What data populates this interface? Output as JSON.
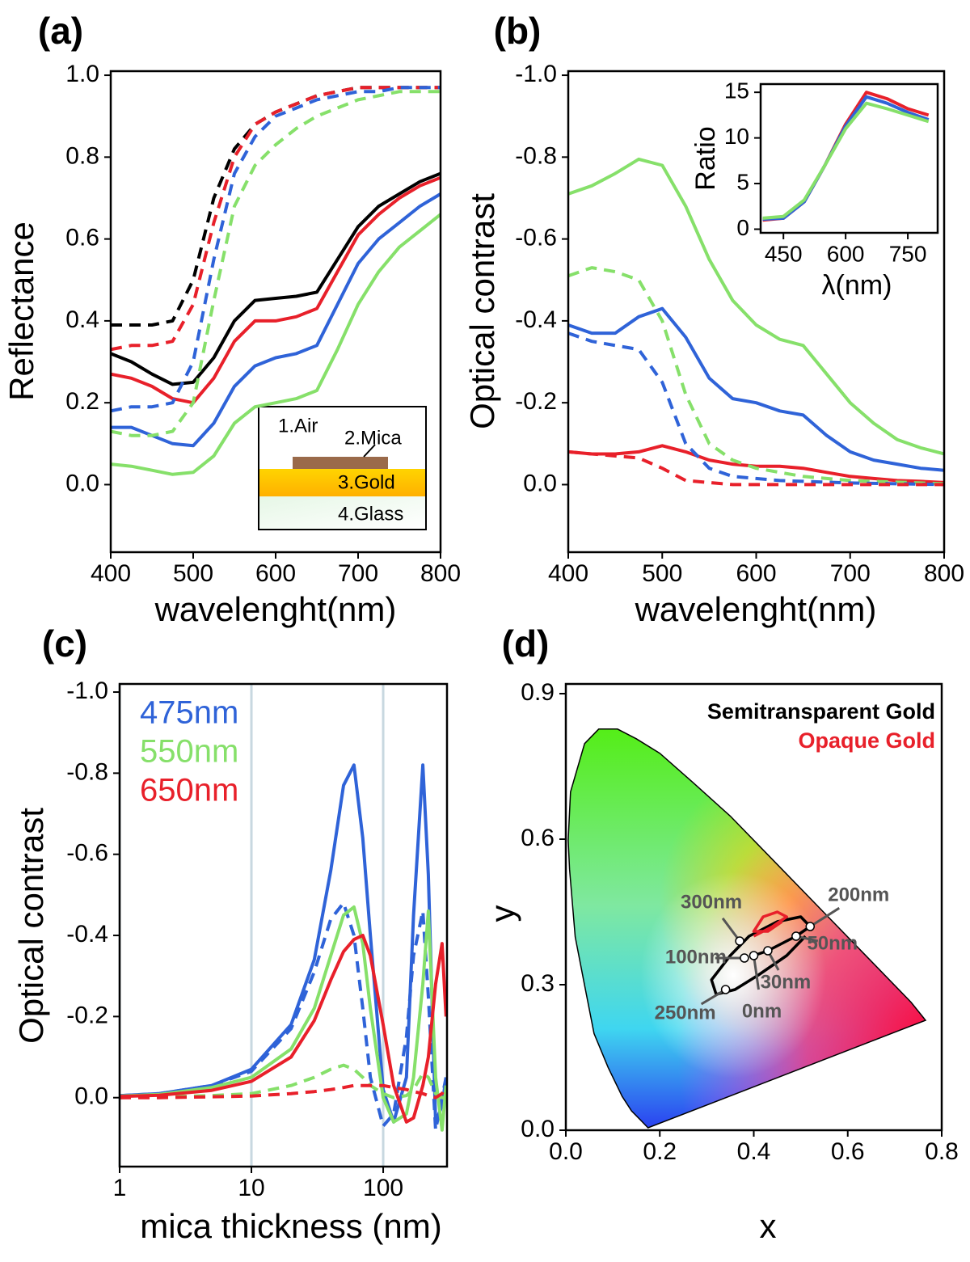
{
  "chart_data": [
    {
      "type": "line",
      "panel": "(a)",
      "xlabel": "wavelenght(nm)",
      "ylabel": "Reflectance",
      "x": [
        400,
        425,
        450,
        475,
        500,
        525,
        550,
        575,
        600,
        625,
        650,
        675,
        700,
        725,
        750,
        775,
        800
      ],
      "xlim": [
        400,
        800
      ],
      "xticks": [
        400,
        500,
        600,
        700,
        800
      ],
      "ylim": [
        -0.165,
        1.01
      ],
      "yticks": [
        {
          "value": 0,
          "label": "0.0"
        },
        0.2,
        0.4,
        0.6,
        0.8,
        {
          "value": 1,
          "label": "1.0"
        }
      ],
      "annotations": [
        "1.Air",
        "2.Mica",
        "3.Gold",
        "4.Glass"
      ],
      "series": [
        {
          "color": "#000000",
          "dash": false,
          "values": [
            0.32,
            0.3,
            0.27,
            0.245,
            0.25,
            0.31,
            0.4,
            0.45,
            0.455,
            0.46,
            0.47,
            0.55,
            0.63,
            0.68,
            0.71,
            0.74,
            0.76
          ]
        },
        {
          "color": "#e8202a",
          "dash": false,
          "values": [
            0.27,
            0.26,
            0.24,
            0.21,
            0.2,
            0.26,
            0.35,
            0.4,
            0.4,
            0.41,
            0.43,
            0.52,
            0.61,
            0.66,
            0.7,
            0.73,
            0.75
          ]
        },
        {
          "color": "#2f63d8",
          "dash": false,
          "values": [
            0.14,
            0.14,
            0.12,
            0.1,
            0.095,
            0.15,
            0.24,
            0.29,
            0.31,
            0.32,
            0.34,
            0.44,
            0.54,
            0.6,
            0.64,
            0.68,
            0.71
          ]
        },
        {
          "color": "#86e06a",
          "dash": false,
          "values": [
            0.05,
            0.045,
            0.035,
            0.025,
            0.03,
            0.07,
            0.15,
            0.19,
            0.2,
            0.21,
            0.23,
            0.33,
            0.44,
            0.52,
            0.58,
            0.62,
            0.66
          ]
        },
        {
          "color": "#000000",
          "dash": true,
          "values": [
            0.39,
            0.39,
            0.39,
            0.4,
            0.5,
            0.7,
            0.82,
            0.88,
            0.91,
            0.93,
            0.95,
            0.96,
            0.97,
            0.97,
            0.97,
            0.97,
            0.97
          ]
        },
        {
          "color": "#e8202a",
          "dash": true,
          "values": [
            0.33,
            0.34,
            0.34,
            0.35,
            0.44,
            0.64,
            0.8,
            0.88,
            0.91,
            0.93,
            0.95,
            0.96,
            0.97,
            0.97,
            0.97,
            0.97,
            0.97
          ]
        },
        {
          "color": "#2f63d8",
          "dash": true,
          "values": [
            0.18,
            0.19,
            0.19,
            0.2,
            0.3,
            0.55,
            0.76,
            0.85,
            0.9,
            0.92,
            0.94,
            0.95,
            0.96,
            0.96,
            0.97,
            0.97,
            0.97
          ]
        },
        {
          "color": "#86e06a",
          "dash": true,
          "values": [
            0.13,
            0.12,
            0.12,
            0.13,
            0.2,
            0.45,
            0.68,
            0.78,
            0.83,
            0.87,
            0.9,
            0.92,
            0.94,
            0.95,
            0.96,
            0.96,
            0.96
          ]
        }
      ]
    },
    {
      "type": "line",
      "panel": "(b)",
      "xlabel": "wavelenght(nm)",
      "ylabel": "Optical contrast",
      "x": [
        400,
        425,
        450,
        475,
        500,
        525,
        550,
        575,
        600,
        625,
        650,
        675,
        700,
        725,
        750,
        775,
        800
      ],
      "xlim": [
        400,
        800
      ],
      "xticks": [
        400,
        500,
        600,
        700,
        800
      ],
      "ylim": [
        0.165,
        -1.01
      ],
      "yticks": [
        {
          "value": -1,
          "label": "-1.0"
        },
        -0.8,
        -0.6,
        -0.4,
        -0.2,
        {
          "value": 0,
          "label": "0.0"
        }
      ],
      "series": [
        {
          "color": "#86e06a",
          "dash": false,
          "values": [
            -0.71,
            -0.73,
            -0.76,
            -0.795,
            -0.78,
            -0.68,
            -0.55,
            -0.45,
            -0.39,
            -0.355,
            -0.34,
            -0.27,
            -0.2,
            -0.15,
            -0.11,
            -0.09,
            -0.075
          ]
        },
        {
          "color": "#2f63d8",
          "dash": false,
          "values": [
            -0.39,
            -0.37,
            -0.37,
            -0.41,
            -0.43,
            -0.36,
            -0.26,
            -0.21,
            -0.2,
            -0.18,
            -0.17,
            -0.12,
            -0.08,
            -0.06,
            -0.05,
            -0.04,
            -0.035
          ]
        },
        {
          "color": "#e8202a",
          "dash": false,
          "values": [
            -0.08,
            -0.075,
            -0.075,
            -0.08,
            -0.095,
            -0.08,
            -0.06,
            -0.05,
            -0.045,
            -0.045,
            -0.04,
            -0.03,
            -0.02,
            -0.015,
            -0.01,
            -0.008,
            -0.005
          ]
        },
        {
          "color": "#86e06a",
          "dash": true,
          "values": [
            -0.51,
            -0.53,
            -0.52,
            -0.5,
            -0.4,
            -0.22,
            -0.1,
            -0.06,
            -0.04,
            -0.03,
            -0.02,
            -0.015,
            -0.01,
            -0.008,
            -0.006,
            -0.004,
            -0.002
          ]
        },
        {
          "color": "#2f63d8",
          "dash": true,
          "values": [
            -0.37,
            -0.35,
            -0.34,
            -0.33,
            -0.25,
            -0.1,
            -0.04,
            -0.02,
            -0.015,
            -0.01,
            -0.008,
            -0.006,
            -0.004,
            -0.003,
            -0.002,
            -0.001,
            0
          ]
        },
        {
          "color": "#e8202a",
          "dash": true,
          "values": [
            -0.08,
            -0.075,
            -0.07,
            -0.065,
            -0.04,
            -0.01,
            -0.005,
            0,
            0,
            0,
            0,
            0,
            0,
            0,
            0,
            0,
            0
          ]
        }
      ]
    },
    {
      "type": "line",
      "xlabel": "λ(nm)",
      "ylabel": "Ratio",
      "x": [
        400,
        450,
        500,
        550,
        600,
        650,
        700,
        750,
        800
      ],
      "xlim": [
        395,
        822
      ],
      "xticks": [
        450,
        600,
        750
      ],
      "ylim": [
        -0.4,
        15.9
      ],
      "yticks": [
        0,
        5,
        10,
        15
      ],
      "series": [
        {
          "color": "#e8202a",
          "dash": false,
          "values": [
            1,
            1.2,
            3,
            7,
            11.5,
            15,
            14.3,
            13.2,
            12.5
          ]
        },
        {
          "color": "#2f63d8",
          "dash": false,
          "values": [
            1.1,
            1.2,
            3,
            7,
            11.3,
            14.5,
            13.8,
            12.8,
            12
          ]
        },
        {
          "color": "#86e06a",
          "dash": false,
          "values": [
            1.2,
            1.4,
            3.2,
            7,
            11,
            13.8,
            13.2,
            12.5,
            11.8
          ]
        }
      ]
    },
    {
      "type": "line",
      "panel": "(c)",
      "xlabel": "mica thickness (nm)",
      "ylabel": "Optical contrast",
      "log_x": true,
      "grid": true,
      "legend": "upper left",
      "x": [
        1,
        2,
        5,
        10,
        20,
        30,
        40,
        50,
        60,
        70,
        80,
        100,
        120,
        150,
        170,
        200,
        220,
        250,
        280,
        300
      ],
      "xlim": [
        1,
        305
      ],
      "xticks": [
        1,
        10,
        100
      ],
      "ylim": [
        0.17,
        -1.02
      ],
      "yticks": [
        {
          "value": -1,
          "label": "-1.0"
        },
        -0.8,
        -0.6,
        -0.4,
        -0.2,
        {
          "value": 0,
          "label": "0.0"
        }
      ],
      "series": [
        {
          "name": "475nm",
          "color": "#2f63d8",
          "dash": false,
          "values": [
            -0.005,
            -0.01,
            -0.03,
            -0.07,
            -0.18,
            -0.34,
            -0.56,
            -0.77,
            -0.82,
            -0.64,
            -0.4,
            -0.02,
            0.06,
            -0.05,
            -0.45,
            -0.82,
            -0.55,
            0.06,
            0.02,
            -0.05
          ]
        },
        {
          "color": "#2f63d8",
          "dash": true,
          "values": [
            -0.005,
            -0.01,
            -0.03,
            -0.065,
            -0.17,
            -0.31,
            -0.44,
            -0.48,
            -0.4,
            -0.22,
            -0.05,
            0.07,
            0.04,
            -0.15,
            -0.35,
            -0.46,
            -0.25,
            0.08,
            0,
            -0.05
          ]
        },
        {
          "name": "550nm",
          "color": "#86e06a",
          "dash": false,
          "values": [
            -0.004,
            -0.008,
            -0.025,
            -0.05,
            -0.12,
            -0.22,
            -0.35,
            -0.45,
            -0.47,
            -0.38,
            -0.22,
            0,
            0.06,
            0.04,
            -0.05,
            -0.28,
            -0.46,
            -0.05,
            0.08,
            -0.03
          ]
        },
        {
          "color": "#86e06a",
          "dash": true,
          "values": [
            0,
            -0.002,
            -0.005,
            -0.01,
            -0.03,
            -0.05,
            -0.07,
            -0.08,
            -0.07,
            -0.05,
            -0.03,
            -0.01,
            0,
            -0.005,
            -0.02,
            -0.06,
            -0.05,
            -0.01,
            0,
            0
          ]
        },
        {
          "name": "650nm",
          "color": "#e8202a",
          "dash": false,
          "values": [
            -0.003,
            -0.006,
            -0.018,
            -0.04,
            -0.1,
            -0.19,
            -0.29,
            -0.36,
            -0.39,
            -0.4,
            -0.35,
            -0.18,
            -0.03,
            0.06,
            0.05,
            -0.03,
            -0.1,
            -0.28,
            -0.38,
            -0.2
          ]
        },
        {
          "color": "#e8202a",
          "dash": true,
          "values": [
            0,
            0,
            -0.002,
            -0.004,
            -0.01,
            -0.015,
            -0.02,
            -0.025,
            -0.03,
            -0.03,
            -0.03,
            -0.03,
            -0.025,
            -0.02,
            -0.015,
            -0.01,
            -0.005,
            0,
            -0.01,
            -0.03
          ]
        }
      ]
    },
    {
      "type": "scatter",
      "panel": "(d)",
      "xlabel": "x",
      "ylabel": "y",
      "legend": "upper right",
      "xlim": [
        0,
        0.8
      ],
      "xticks": [
        {
          "value": 0,
          "label": "0.0"
        },
        0.2,
        0.4,
        0.6,
        0.8
      ],
      "ylim": [
        0,
        0.92
      ],
      "yticks": [
        {
          "value": 0,
          "label": "0.0"
        },
        0.3,
        0.6,
        0.9
      ],
      "series": [
        {
          "name": "Semitransparent Gold",
          "color": "#000000",
          "x": [
            0.4,
            0.43,
            0.49,
            0.52,
            0.5,
            0.45,
            0.39,
            0.35,
            0.31,
            0.32,
            0.36,
            0.41,
            0.47,
            0.51
          ],
          "values": [
            0.36,
            0.37,
            0.4,
            0.42,
            0.44,
            0.43,
            0.4,
            0.36,
            0.31,
            0.28,
            0.29,
            0.32,
            0.36,
            0.4
          ]
        },
        {
          "name": "Opaque Gold",
          "color": "#e8202a",
          "x": [
            0.4,
            0.44,
            0.47,
            0.45,
            0.42,
            0.4,
            0.43,
            0.46
          ],
          "values": [
            0.4,
            0.42,
            0.44,
            0.45,
            0.44,
            0.41,
            0.41,
            0.43
          ]
        }
      ],
      "points": [
        {
          "label": "300nm",
          "x": 0.37,
          "y": 0.39
        },
        {
          "label": "200nm",
          "x": 0.52,
          "y": 0.42
        },
        {
          "label": "100nm",
          "x": 0.38,
          "y": 0.355
        },
        {
          "label": "50nm",
          "x": 0.49,
          "y": 0.4
        },
        {
          "label": "30nm",
          "x": 0.43,
          "y": 0.37
        },
        {
          "label": "0nm",
          "x": 0.4,
          "y": 0.36
        },
        {
          "label": "250nm",
          "x": 0.34,
          "y": 0.29
        }
      ]
    }
  ]
}
